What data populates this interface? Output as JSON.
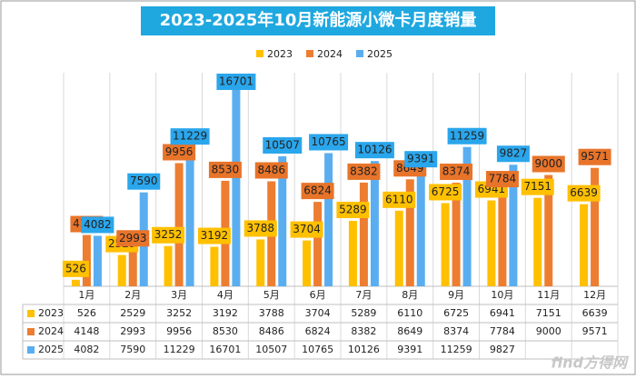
{
  "chart_data": {
    "type": "bar",
    "title": "2023-2025年10月新能源小微卡月度销量",
    "categories": [
      "1月",
      "2月",
      "3月",
      "4月",
      "5月",
      "6月",
      "7月",
      "8月",
      "9月",
      "10月",
      "11月",
      "12月"
    ],
    "series": [
      {
        "name": "2023",
        "color": "#ffc000",
        "values": [
          526,
          2529,
          3252,
          3192,
          3788,
          3704,
          5289,
          6110,
          6725,
          6941,
          7151,
          6639
        ]
      },
      {
        "name": "2024",
        "color": "#ed7d31",
        "values": [
          4148,
          2993,
          9956,
          8530,
          8486,
          6824,
          8382,
          8649,
          8374,
          7784,
          9000,
          9571
        ]
      },
      {
        "name": "2025",
        "color": "#5aaef0",
        "values": [
          4082,
          7590,
          11229,
          16701,
          10507,
          10765,
          10126,
          9391,
          11259,
          9827,
          null,
          null
        ]
      }
    ],
    "ylim": [
      0,
      18000
    ],
    "grid": true,
    "legend": "top",
    "watermark": "find方得网"
  }
}
